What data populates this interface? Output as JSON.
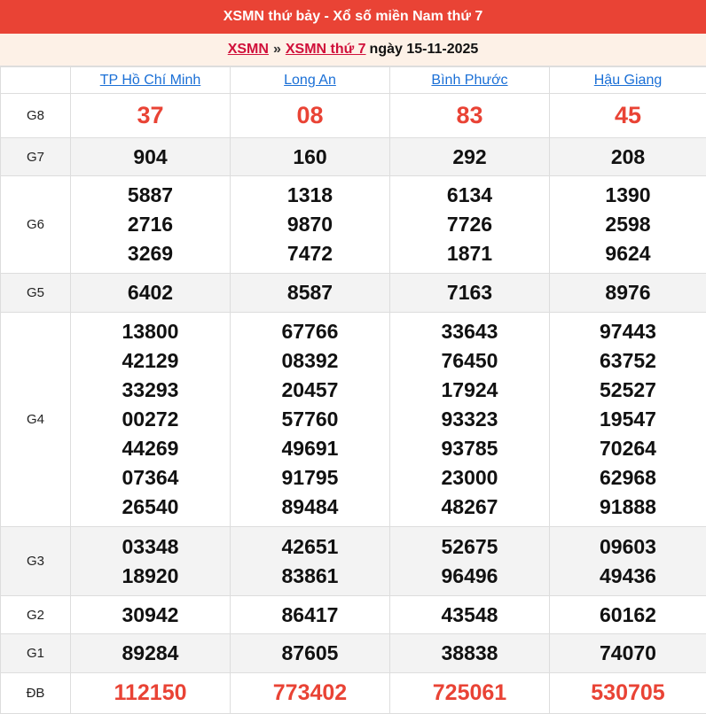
{
  "header": {
    "title": "XSMN thứ bảy - Xổ số miền Nam thứ 7"
  },
  "breadcrumb": {
    "link1": "XSMN",
    "separator": "»",
    "link2": "XSMN thứ 7",
    "date_text": "ngày 15-11-2025"
  },
  "colors": {
    "brand_red": "#e94335",
    "link_blue": "#1a6fd6",
    "breadcrumb_link": "#d0103a"
  },
  "provinces": [
    "TP Hồ Chí Minh",
    "Long An",
    "Bình Phước",
    "Hậu Giang"
  ],
  "prizes": [
    {
      "label": "G8",
      "values": [
        [
          "37"
        ],
        [
          "08"
        ],
        [
          "83"
        ],
        [
          "45"
        ]
      ]
    },
    {
      "label": "G7",
      "values": [
        [
          "904"
        ],
        [
          "160"
        ],
        [
          "292"
        ],
        [
          "208"
        ]
      ]
    },
    {
      "label": "G6",
      "values": [
        [
          "5887",
          "2716",
          "3269"
        ],
        [
          "1318",
          "9870",
          "7472"
        ],
        [
          "6134",
          "7726",
          "1871"
        ],
        [
          "1390",
          "2598",
          "9624"
        ]
      ]
    },
    {
      "label": "G5",
      "values": [
        [
          "6402"
        ],
        [
          "8587"
        ],
        [
          "7163"
        ],
        [
          "8976"
        ]
      ]
    },
    {
      "label": "G4",
      "values": [
        [
          "13800",
          "42129",
          "33293",
          "00272",
          "44269",
          "07364",
          "26540"
        ],
        [
          "67766",
          "08392",
          "20457",
          "57760",
          "49691",
          "91795",
          "89484"
        ],
        [
          "33643",
          "76450",
          "17924",
          "93323",
          "93785",
          "23000",
          "48267"
        ],
        [
          "97443",
          "63752",
          "52527",
          "19547",
          "70264",
          "62968",
          "91888"
        ]
      ]
    },
    {
      "label": "G3",
      "values": [
        [
          "03348",
          "18920"
        ],
        [
          "42651",
          "83861"
        ],
        [
          "52675",
          "96496"
        ],
        [
          "09603",
          "49436"
        ]
      ]
    },
    {
      "label": "G2",
      "values": [
        [
          "30942"
        ],
        [
          "86417"
        ],
        [
          "43548"
        ],
        [
          "60162"
        ]
      ]
    },
    {
      "label": "G1",
      "values": [
        [
          "89284"
        ],
        [
          "87605"
        ],
        [
          "38838"
        ],
        [
          "74070"
        ]
      ]
    },
    {
      "label": "ĐB",
      "values": [
        [
          "112150"
        ],
        [
          "773402"
        ],
        [
          "725061"
        ],
        [
          "530705"
        ]
      ]
    }
  ]
}
